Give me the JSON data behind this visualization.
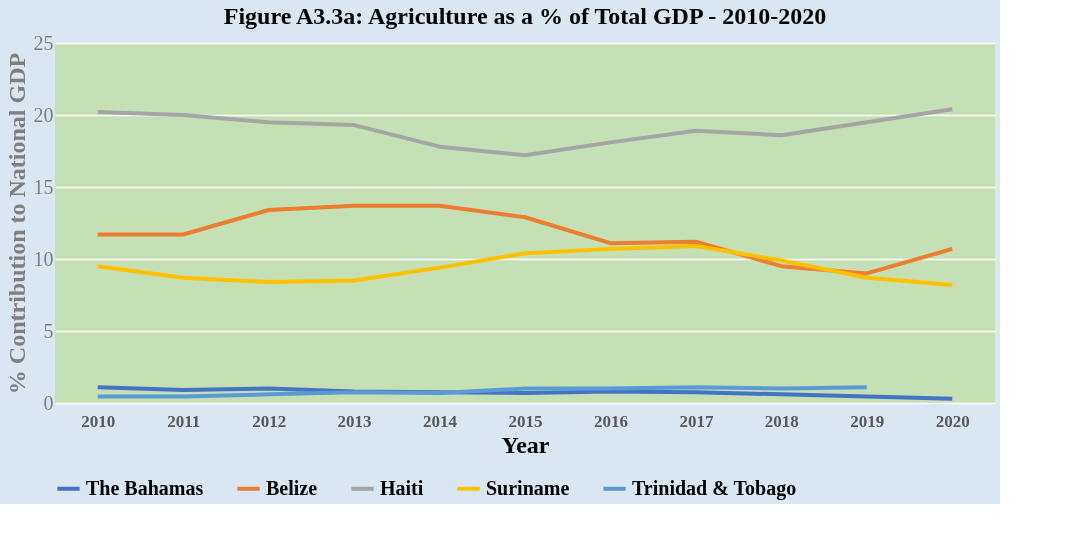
{
  "chart_data": {
    "type": "line",
    "title": "Figure A3.3a: Agriculture as a % of Total GDP - 2010-2020",
    "xlabel": "Year",
    "ylabel": "% Contribution to National GDP",
    "categories": [
      "2010",
      "2011",
      "2012",
      "2013",
      "2014",
      "2015",
      "2016",
      "2017",
      "2018",
      "2019",
      "2020"
    ],
    "series": [
      {
        "name": "The Bahamas",
        "color": "#4472c4",
        "values": [
          1.1,
          0.9,
          1.0,
          0.8,
          0.75,
          0.7,
          0.8,
          0.75,
          0.6,
          0.45,
          0.3
        ]
      },
      {
        "name": "Belize",
        "color": "#ed7d31",
        "values": [
          11.7,
          11.7,
          13.4,
          13.7,
          13.7,
          12.9,
          11.1,
          11.2,
          9.5,
          9.0,
          10.7
        ]
      },
      {
        "name": "Haiti",
        "color": "#a5a5a5",
        "values": [
          20.2,
          20.0,
          19.5,
          19.3,
          17.8,
          17.2,
          18.1,
          18.9,
          18.6,
          19.5,
          20.4
        ]
      },
      {
        "name": "Suriname",
        "color": "#ffc000",
        "values": [
          9.5,
          8.7,
          8.4,
          8.5,
          9.4,
          10.4,
          10.7,
          10.9,
          9.9,
          8.7,
          8.2
        ]
      },
      {
        "name": "Trinidad & Tobago",
        "color": "#5b9bd5",
        "values": [
          0.45,
          0.45,
          0.6,
          0.75,
          0.7,
          1.0,
          1.0,
          1.1,
          1.0,
          1.1,
          null
        ]
      }
    ],
    "ylim": [
      0,
      25
    ],
    "yticks": [
      0,
      5,
      10,
      15,
      20,
      25
    ],
    "grid": "y",
    "legend": "bottom",
    "marker": "none",
    "line_style": "solid"
  }
}
